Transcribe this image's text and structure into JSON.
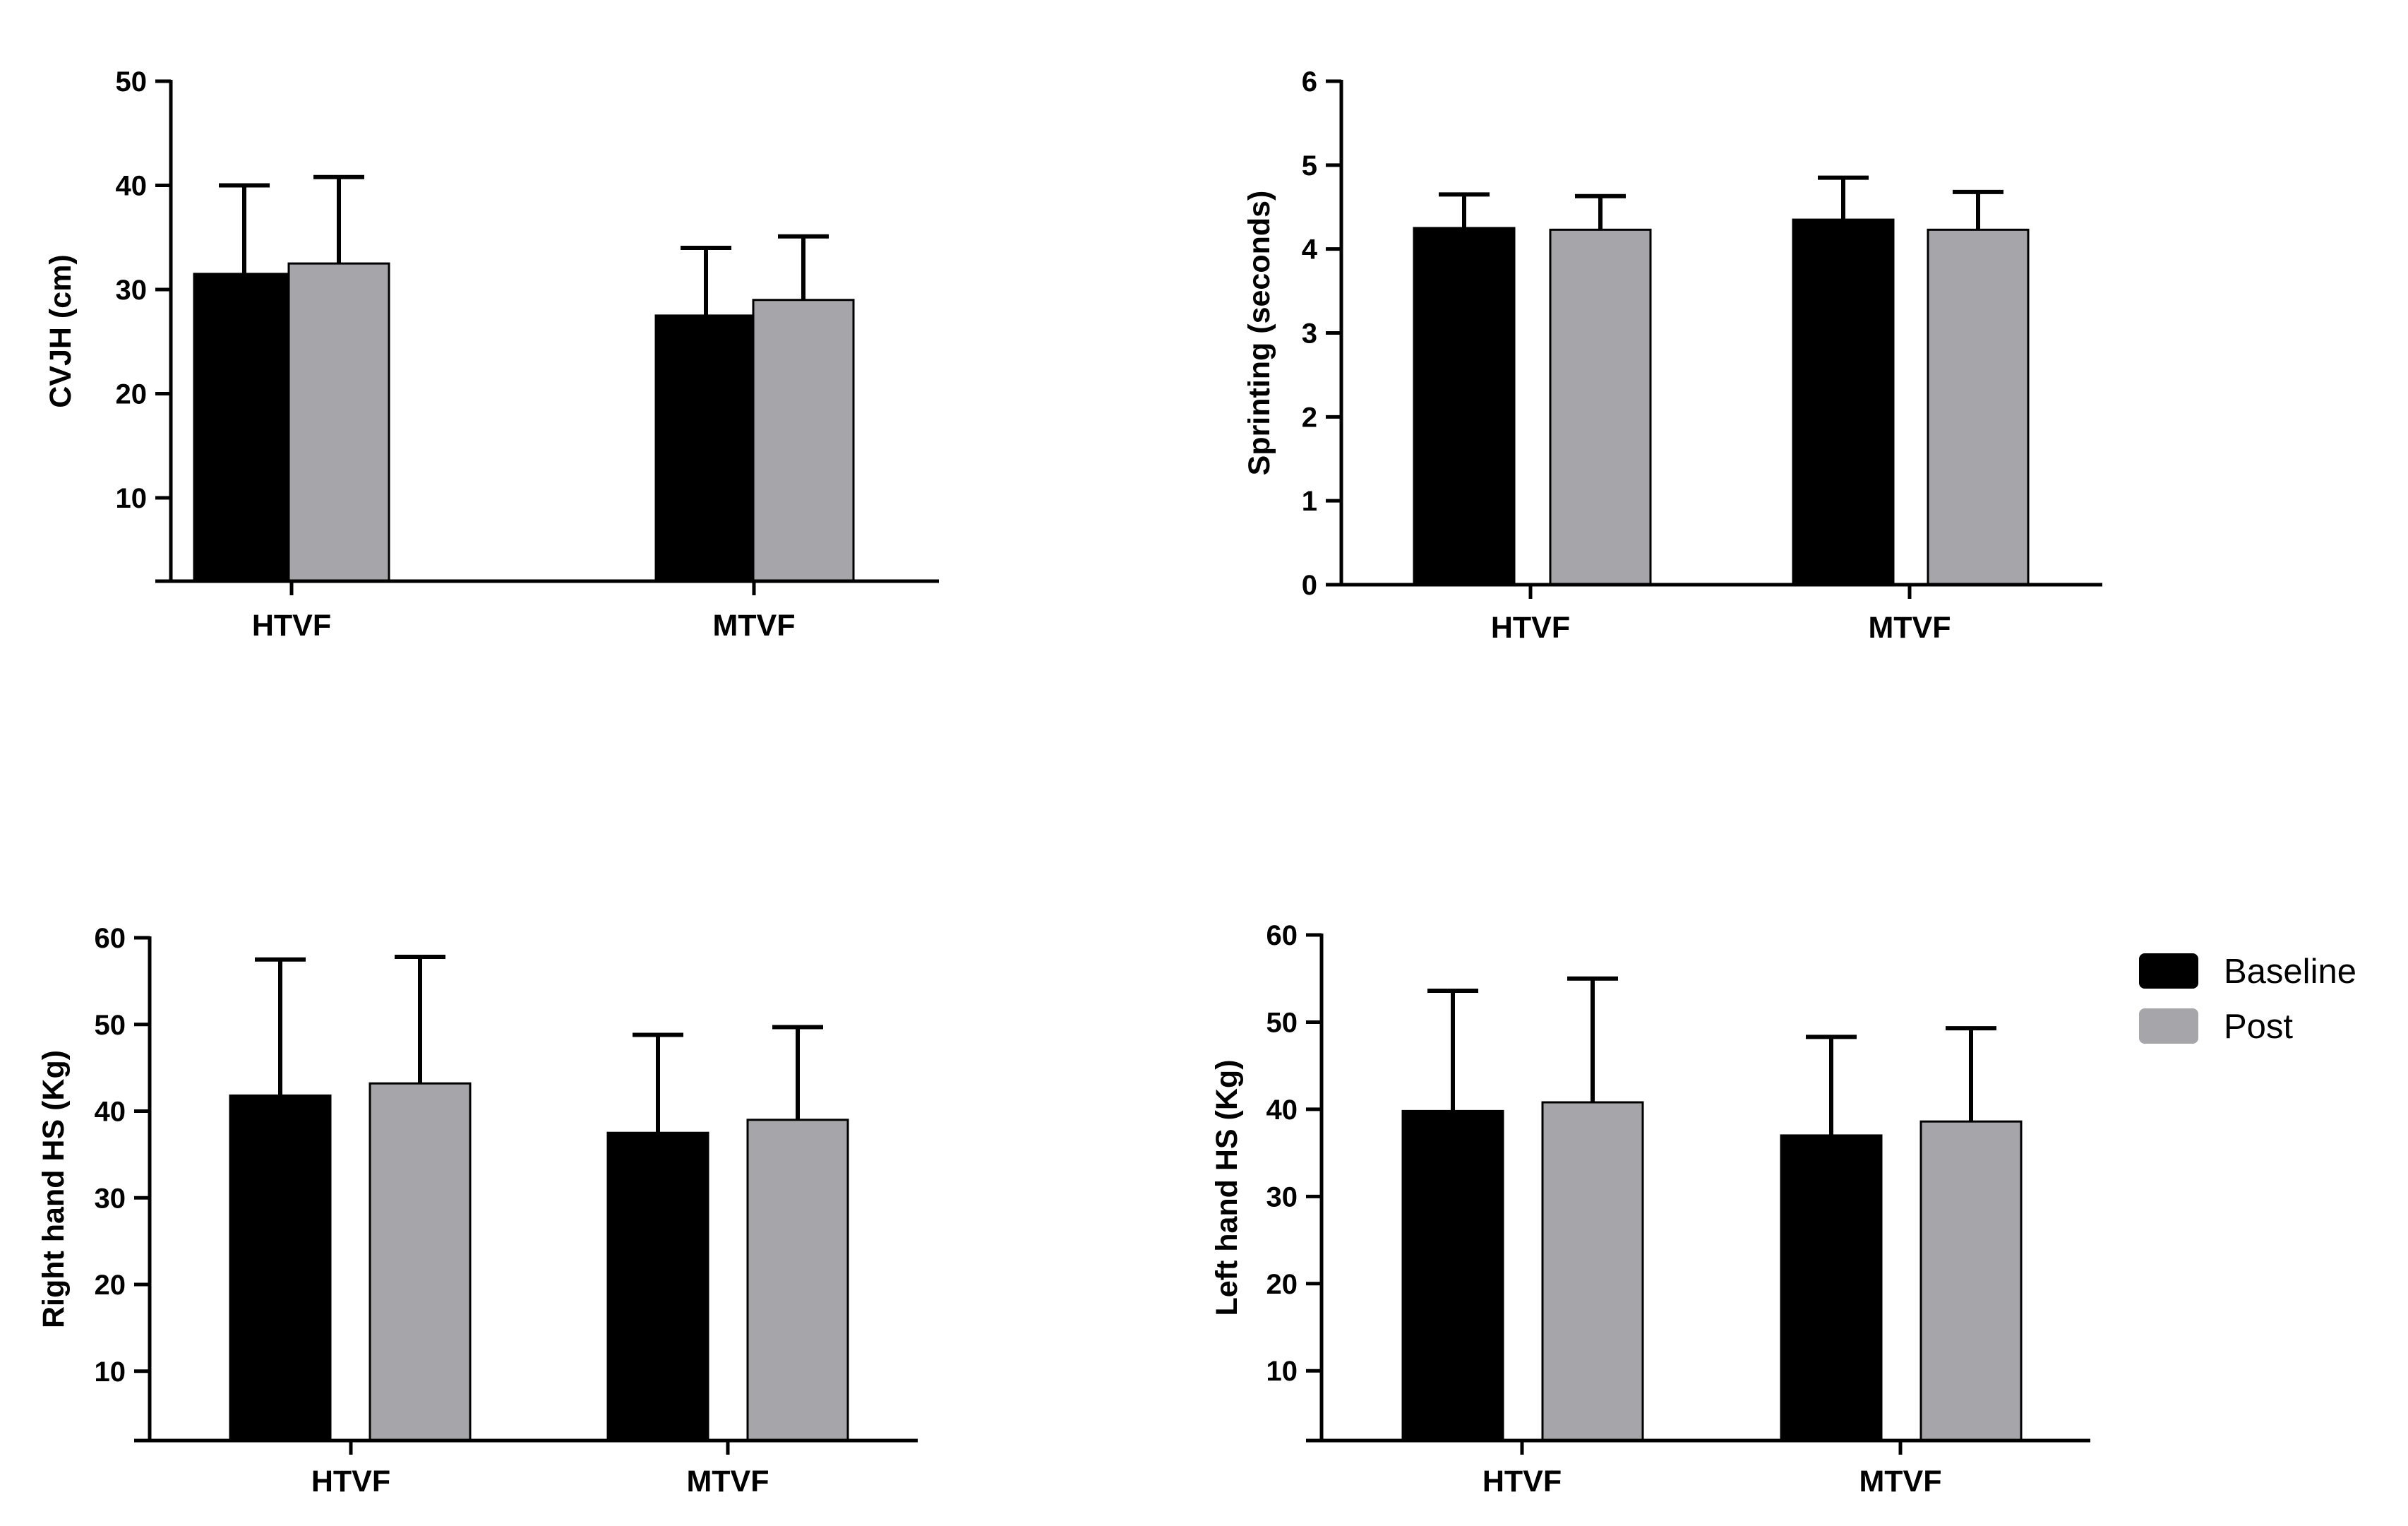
{
  "colors": {
    "baseline": "#000000",
    "post": "#a6a5aa",
    "axis": "#000000"
  },
  "legend": {
    "items": [
      {
        "key": "baseline",
        "label": "Baseline"
      },
      {
        "key": "post",
        "label": "Post"
      }
    ]
  },
  "chart_data": [
    {
      "id": "cvjh",
      "type": "bar",
      "title": "",
      "xlabel": "",
      "ylabel": "CVJH (cm)",
      "categories": [
        "HTVF",
        "MTVF"
      ],
      "ylim": [
        2,
        50
      ],
      "yticks": [
        10,
        20,
        30,
        40,
        50
      ],
      "series": [
        {
          "name": "Baseline",
          "values": [
            31.5,
            27.5
          ],
          "errors": [
            8.5,
            6.5
          ]
        },
        {
          "name": "Post",
          "values": [
            32.5,
            29.0
          ],
          "errors": [
            8.3,
            6.1
          ]
        }
      ]
    },
    {
      "id": "sprinting",
      "type": "bar",
      "title": "",
      "xlabel": "",
      "ylabel": "Sprinting (seconds)",
      "categories": [
        "HTVF",
        "MTVF"
      ],
      "ylim": [
        0,
        6
      ],
      "yticks": [
        0,
        1,
        2,
        3,
        4,
        5,
        6
      ],
      "series": [
        {
          "name": "Baseline",
          "values": [
            4.25,
            4.35
          ],
          "errors": [
            0.4,
            0.5
          ]
        },
        {
          "name": "Post",
          "values": [
            4.23,
            4.23
          ],
          "errors": [
            0.4,
            0.45
          ]
        }
      ]
    },
    {
      "id": "right-hand-hs",
      "type": "bar",
      "title": "",
      "xlabel": "",
      "ylabel": "Right hand HS (Kg)",
      "categories": [
        "HTVF",
        "MTVF"
      ],
      "ylim": [
        2,
        60
      ],
      "yticks": [
        10,
        20,
        30,
        40,
        50,
        60
      ],
      "series": [
        {
          "name": "Baseline",
          "values": [
            41.8,
            37.5
          ],
          "errors": [
            15.7,
            11.3
          ]
        },
        {
          "name": "Post",
          "values": [
            43.2,
            39.0
          ],
          "errors": [
            14.6,
            10.7
          ]
        }
      ]
    },
    {
      "id": "left-hand-hs",
      "type": "bar",
      "title": "",
      "xlabel": "",
      "ylabel": "Left hand HS (Kg)",
      "categories": [
        "HTVF",
        "MTVF"
      ],
      "ylim": [
        2,
        60
      ],
      "yticks": [
        10,
        20,
        30,
        40,
        50,
        60
      ],
      "series": [
        {
          "name": "Baseline",
          "values": [
            39.8,
            37.0
          ],
          "errors": [
            13.8,
            11.3
          ]
        },
        {
          "name": "Post",
          "values": [
            40.8,
            38.6
          ],
          "errors": [
            14.2,
            10.7
          ]
        }
      ]
    }
  ]
}
